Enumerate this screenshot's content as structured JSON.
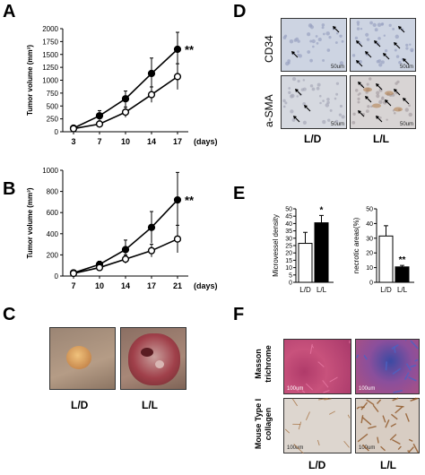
{
  "panels": {
    "A": "A",
    "B": "B",
    "C": "C",
    "D": "D",
    "E": "E",
    "F": "F"
  },
  "chart_data": [
    {
      "id": "A",
      "type": "line",
      "ylabel": "Tumor volume (mm³)",
      "xlabel": "(days)",
      "x": [
        3,
        7,
        10,
        14,
        17
      ],
      "ylim": [
        0,
        2000
      ],
      "yticks": [
        0,
        250,
        500,
        750,
        1000,
        1250,
        1500,
        1750,
        2000
      ],
      "series": [
        {
          "marker": "filled",
          "values": [
            70,
            310,
            640,
            1130,
            1600
          ],
          "err": [
            20,
            100,
            150,
            300,
            330
          ]
        },
        {
          "marker": "open",
          "values": [
            60,
            150,
            380,
            720,
            1070
          ],
          "err": [
            15,
            60,
            100,
            150,
            250
          ]
        }
      ],
      "annotation": "**"
    },
    {
      "id": "B",
      "type": "line",
      "ylabel": "Tumor volume (mm³)",
      "xlabel": "(days)",
      "x": [
        7,
        10,
        14,
        17,
        21
      ],
      "ylim": [
        0,
        1000
      ],
      "yticks": [
        0,
        200,
        400,
        600,
        800,
        1000
      ],
      "series": [
        {
          "marker": "filled",
          "values": [
            30,
            110,
            250,
            460,
            720
          ],
          "err": [
            10,
            30,
            90,
            150,
            260
          ]
        },
        {
          "marker": "open",
          "values": [
            25,
            80,
            160,
            240,
            350
          ],
          "err": [
            8,
            20,
            40,
            60,
            130
          ]
        }
      ],
      "annotation": "**"
    },
    {
      "id": "E1",
      "type": "bar",
      "ylabel": "Microvessel density",
      "categories": [
        "L/D",
        "L/L"
      ],
      "values": [
        26.5,
        40.5
      ],
      "err": [
        7.5,
        5
      ],
      "fills": [
        "#ffffff",
        "#000000"
      ],
      "ylim": [
        0,
        50
      ],
      "yticks": [
        0,
        5,
        10,
        15,
        20,
        25,
        30,
        35,
        40,
        45,
        50
      ],
      "annotation": "*"
    },
    {
      "id": "E2",
      "type": "bar",
      "ylabel": "necrotic  areas(%)",
      "categories": [
        "L/D",
        "L/L"
      ],
      "values": [
        31.5,
        10.5
      ],
      "err": [
        7,
        1
      ],
      "fills": [
        "#ffffff",
        "#000000"
      ],
      "ylim": [
        0,
        50
      ],
      "yticks": [
        0,
        10,
        20,
        30,
        40,
        50
      ],
      "annotation": "**"
    }
  ],
  "panelD": {
    "rows": [
      "CD34",
      "a-SMA"
    ],
    "cols": [
      "L/D",
      "L/L"
    ],
    "scale": "50um"
  },
  "panelC": {
    "cols": [
      "L/D",
      "L/L"
    ]
  },
  "panelF": {
    "rows": [
      "Masson trichrome",
      "Mouse Type I collagen"
    ],
    "cols": [
      "L/D",
      "L/L"
    ],
    "scale": "100um"
  },
  "colors": {
    "cd34_bg": "#cdd4e2",
    "masson_bg": "#c0426e",
    "collagen_bg": "#dcd5cf",
    "skin": "#b89a86"
  }
}
